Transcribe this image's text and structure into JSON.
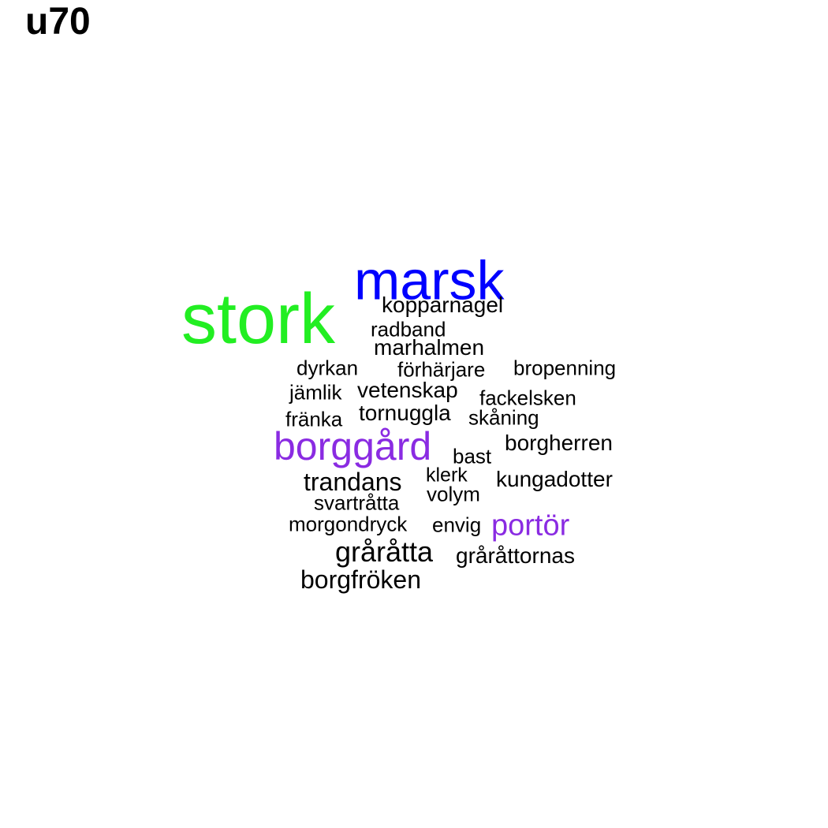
{
  "title": "u70",
  "words": [
    {
      "text": "stork",
      "color": "#22ee22"
    },
    {
      "text": "marsk",
      "color": "#0000ff"
    },
    {
      "text": "borggård",
      "color": "#8a2be2"
    },
    {
      "text": "portör",
      "color": "#8a2be2"
    },
    {
      "text": "gråråtta",
      "color": "#000000"
    },
    {
      "text": "trandans",
      "color": "#000000"
    },
    {
      "text": "borgfröken",
      "color": "#000000"
    },
    {
      "text": "kopparnagel",
      "color": "#000000"
    },
    {
      "text": "radband",
      "color": "#000000"
    },
    {
      "text": "marhalmen",
      "color": "#000000"
    },
    {
      "text": "dyrkan",
      "color": "#000000"
    },
    {
      "text": "förhärjare",
      "color": "#000000"
    },
    {
      "text": "bropenning",
      "color": "#000000"
    },
    {
      "text": "jämlik",
      "color": "#000000"
    },
    {
      "text": "vetenskap",
      "color": "#000000"
    },
    {
      "text": "fackelsken",
      "color": "#000000"
    },
    {
      "text": "fränka",
      "color": "#000000"
    },
    {
      "text": "tornuggla",
      "color": "#000000"
    },
    {
      "text": "skåning",
      "color": "#000000"
    },
    {
      "text": "bast",
      "color": "#000000"
    },
    {
      "text": "borgherren",
      "color": "#000000"
    },
    {
      "text": "klerk",
      "color": "#000000"
    },
    {
      "text": "kungadotter",
      "color": "#000000"
    },
    {
      "text": "svartråtta",
      "color": "#000000"
    },
    {
      "text": "volym",
      "color": "#000000"
    },
    {
      "text": "morgondryck",
      "color": "#000000"
    },
    {
      "text": "envig",
      "color": "#000000"
    },
    {
      "text": "gråråttornas",
      "color": "#000000"
    }
  ]
}
